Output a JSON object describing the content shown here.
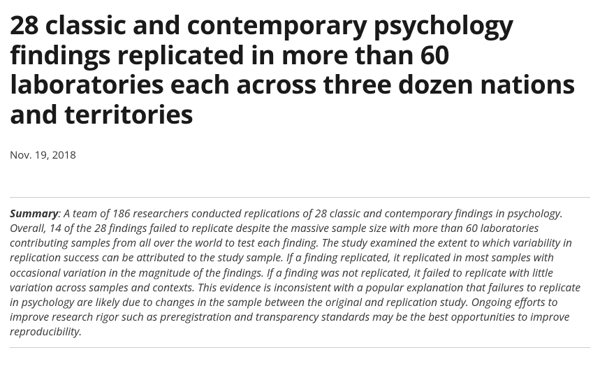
{
  "article": {
    "title": "28 classic and contemporary psychology findings replicated in more than 60 laboratories each across three dozen nations and territories",
    "date": "Nov. 19, 2018",
    "summary_label": "Summary",
    "summary_text": ": A team of 186 researchers conducted replications of 28 classic and contemporary findings in psychology.  Overall, 14 of the 28 findings failed to replicate despite the massive sample size with more than 60 laboratories contributing samples from all over the world to test each finding.  The study examined the extent to which variability in replication success can be attributed to the study sample. If a finding replicated, it replicated in most samples with occasional variation in the magnitude of the findings.  If a finding was not replicated, it failed to replicate with little variation across samples and contexts. This evidence is inconsistent with a popular explanation that failures to replicate in psychology are likely due to changes in the sample between the original and replication study.  Ongoing efforts to improve research rigor such as preregistration and transparency standards may be the best opportunities to improve reproducibility."
  }
}
